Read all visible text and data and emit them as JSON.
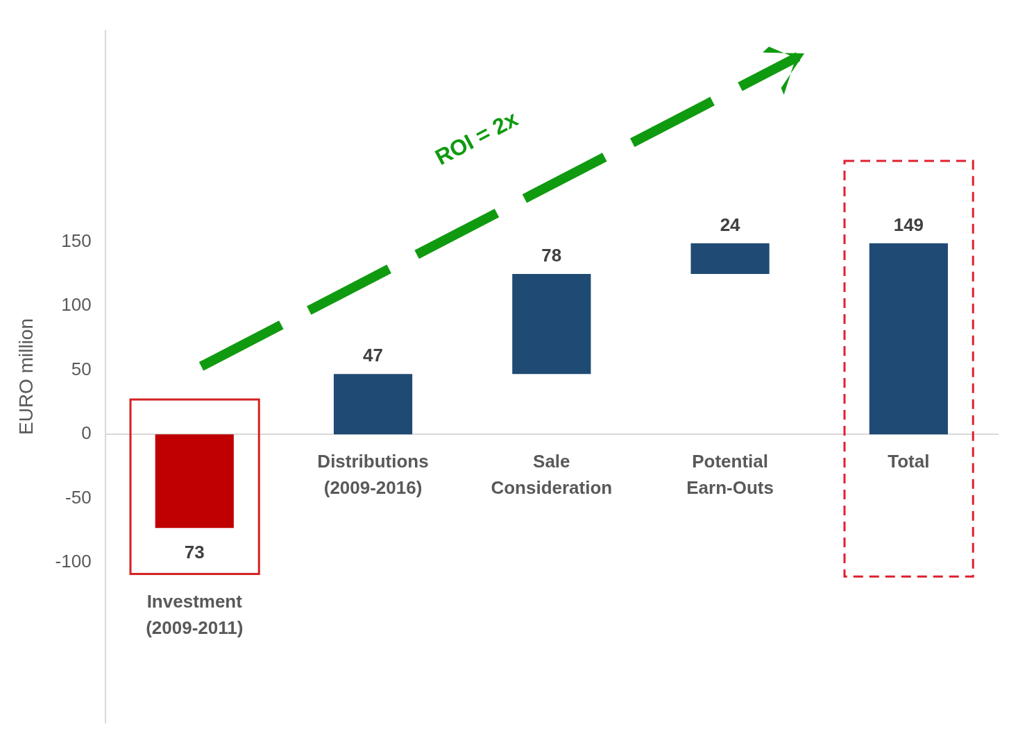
{
  "chart_data": {
    "type": "bar",
    "ylabel": "EURO million",
    "categories": [
      "Investment (2009-2011)",
      "Distributions (2009-2016)",
      "Sale Consideration",
      "Potential Earn-Outs",
      "Total"
    ],
    "values": [
      -73,
      47,
      78,
      24,
      149
    ],
    "base": [
      0,
      0,
      47,
      125,
      0
    ],
    "colors": [
      "#c00000",
      "#1f4a73",
      "#1f4a73",
      "#1f4a73",
      "#1f4a73"
    ],
    "value_labels": [
      "73",
      "47",
      "78",
      "24",
      "149"
    ],
    "ylim": [
      -225,
      315
    ],
    "yticks": [
      -100,
      -50,
      0,
      50,
      100,
      150
    ],
    "grid": false,
    "legend": false,
    "annotations": [
      "ROI = 2x"
    ]
  }
}
